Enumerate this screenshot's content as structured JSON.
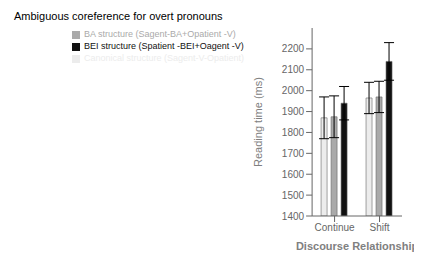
{
  "chart_data": {
    "type": "bar",
    "title": "Ambiguous coreference for overt pronouns",
    "xlabel": "Discourse Relationship",
    "ylabel": "Reading time (ms)",
    "categories": [
      "Continue",
      "Shift"
    ],
    "series": [
      {
        "name": "Canonical structure (Sagent-V-Opatient)",
        "color": "#ececec",
        "values": [
          1870,
          1965
        ],
        "errors": [
          100,
          75
        ]
      },
      {
        "name": "BA structure (Sagent-BA+Opatient -V)",
        "color": "#aaaaaa",
        "values": [
          1875,
          1970
        ],
        "errors": [
          100,
          75
        ]
      },
      {
        "name": "BEI structure (Spatient -BEI+Oagent -V)",
        "color": "#111111",
        "values": [
          1940,
          2140
        ],
        "errors": [
          80,
          90
        ]
      }
    ],
    "ylim": [
      1400,
      2300
    ],
    "yticks": [
      1400,
      1500,
      1600,
      1700,
      1800,
      1900,
      2000,
      2100,
      2200
    ],
    "legend": "top"
  }
}
